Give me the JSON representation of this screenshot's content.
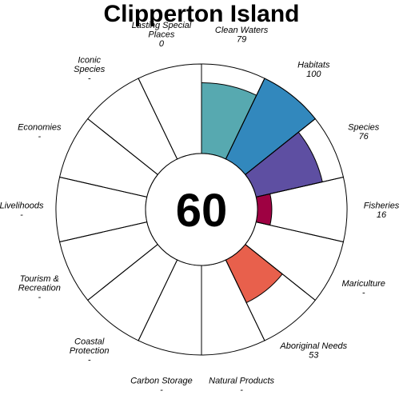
{
  "chart_data": {
    "type": "flower",
    "title": "Clipperton Island",
    "overall_score": "60",
    "max_value": 100,
    "petals": [
      {
        "label": [
          "Fisheries"
        ],
        "score": "16",
        "value": 16,
        "color": "#9e0142"
      },
      {
        "label": [
          "Mariculture"
        ],
        "score": "-",
        "value": null,
        "color": ""
      },
      {
        "label": [
          "Aboriginal Needs"
        ],
        "score": "53",
        "value": 53,
        "color": "#e8604c"
      },
      {
        "label": [
          "Natural Products"
        ],
        "score": "-",
        "value": null,
        "color": ""
      },
      {
        "label": [
          "Carbon Storage"
        ],
        "score": "-",
        "value": null,
        "color": ""
      },
      {
        "label": [
          "Coastal",
          "Protection"
        ],
        "score": "-",
        "value": null,
        "color": ""
      },
      {
        "label": [
          "Tourism &",
          "Recreation"
        ],
        "score": "-",
        "value": null,
        "color": ""
      },
      {
        "label": [
          "Livelihoods"
        ],
        "score": "-",
        "value": null,
        "color": ""
      },
      {
        "label": [
          "Economies"
        ],
        "score": "-",
        "value": null,
        "color": ""
      },
      {
        "label": [
          "Iconic",
          "Species"
        ],
        "score": "-",
        "value": null,
        "color": ""
      },
      {
        "label": [
          "Lasting Special",
          "Places"
        ],
        "score": "0",
        "value": 0,
        "color": ""
      },
      {
        "label": [
          "Clean Waters"
        ],
        "score": "79",
        "value": 79,
        "color": "#57a9b0"
      },
      {
        "label": [
          "Habitats"
        ],
        "score": "100",
        "value": 100,
        "color": "#3288bd"
      },
      {
        "label": [
          "Species"
        ],
        "score": "76",
        "value": 76,
        "color": "#5e4fa2"
      }
    ]
  }
}
